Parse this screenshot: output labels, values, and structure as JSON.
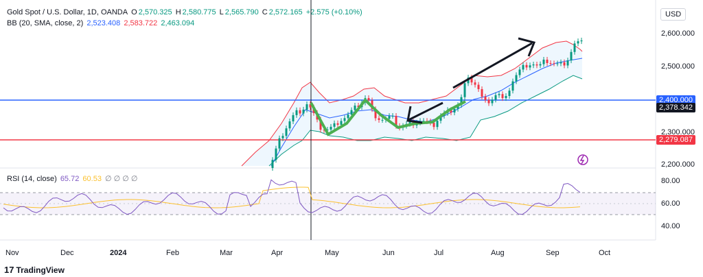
{
  "header": {
    "symbol": "Gold Spot / U.S. Dollar, 1D, OANDA",
    "o_label": "O",
    "o_val": "2,570.325",
    "h_label": "H",
    "h_val": "2,580.775",
    "l_label": "L",
    "l_val": "2,565.790",
    "c_label": "C",
    "c_val": "2,572.165",
    "change": "+2.575 (+0.10%)",
    "bb_label": "BB (20, SMA, close, 2)",
    "bb_mid": "2,523.408",
    "bb_up": "2,583.722",
    "bb_low": "2,463.094",
    "currency": "USD"
  },
  "colors": {
    "up": "#089981",
    "down": "#f23645",
    "blue_line": "#2962ff",
    "red_line": "#f23645",
    "bb_mid": "#2962ff",
    "bb_up": "#f23645",
    "bb_low": "#089981",
    "rsi": "#7e57c2",
    "rsi_ma": "#fbc02d"
  },
  "price_axis": [
    "2,600.000",
    "2,500.000",
    "2,300.000",
    "2,200.000"
  ],
  "price_tags": {
    "blue": "2,400.000",
    "dark": "2,378.342",
    "red": "2,279.087"
  },
  "rsi": {
    "label": "RSI (14, close)",
    "val1": "65.72",
    "val2": "60.53",
    "zeros": "∅ ∅ ∅ ∅",
    "axis": [
      "80.00",
      "60.00",
      "40.00"
    ]
  },
  "months": [
    "Nov",
    "Dec",
    "2024",
    "Feb",
    "Mar",
    "Apr",
    "May",
    "Jun",
    "Jul",
    "Aug",
    "Sep",
    "Oct"
  ],
  "footer": {
    "brand": "TradingView"
  }
}
